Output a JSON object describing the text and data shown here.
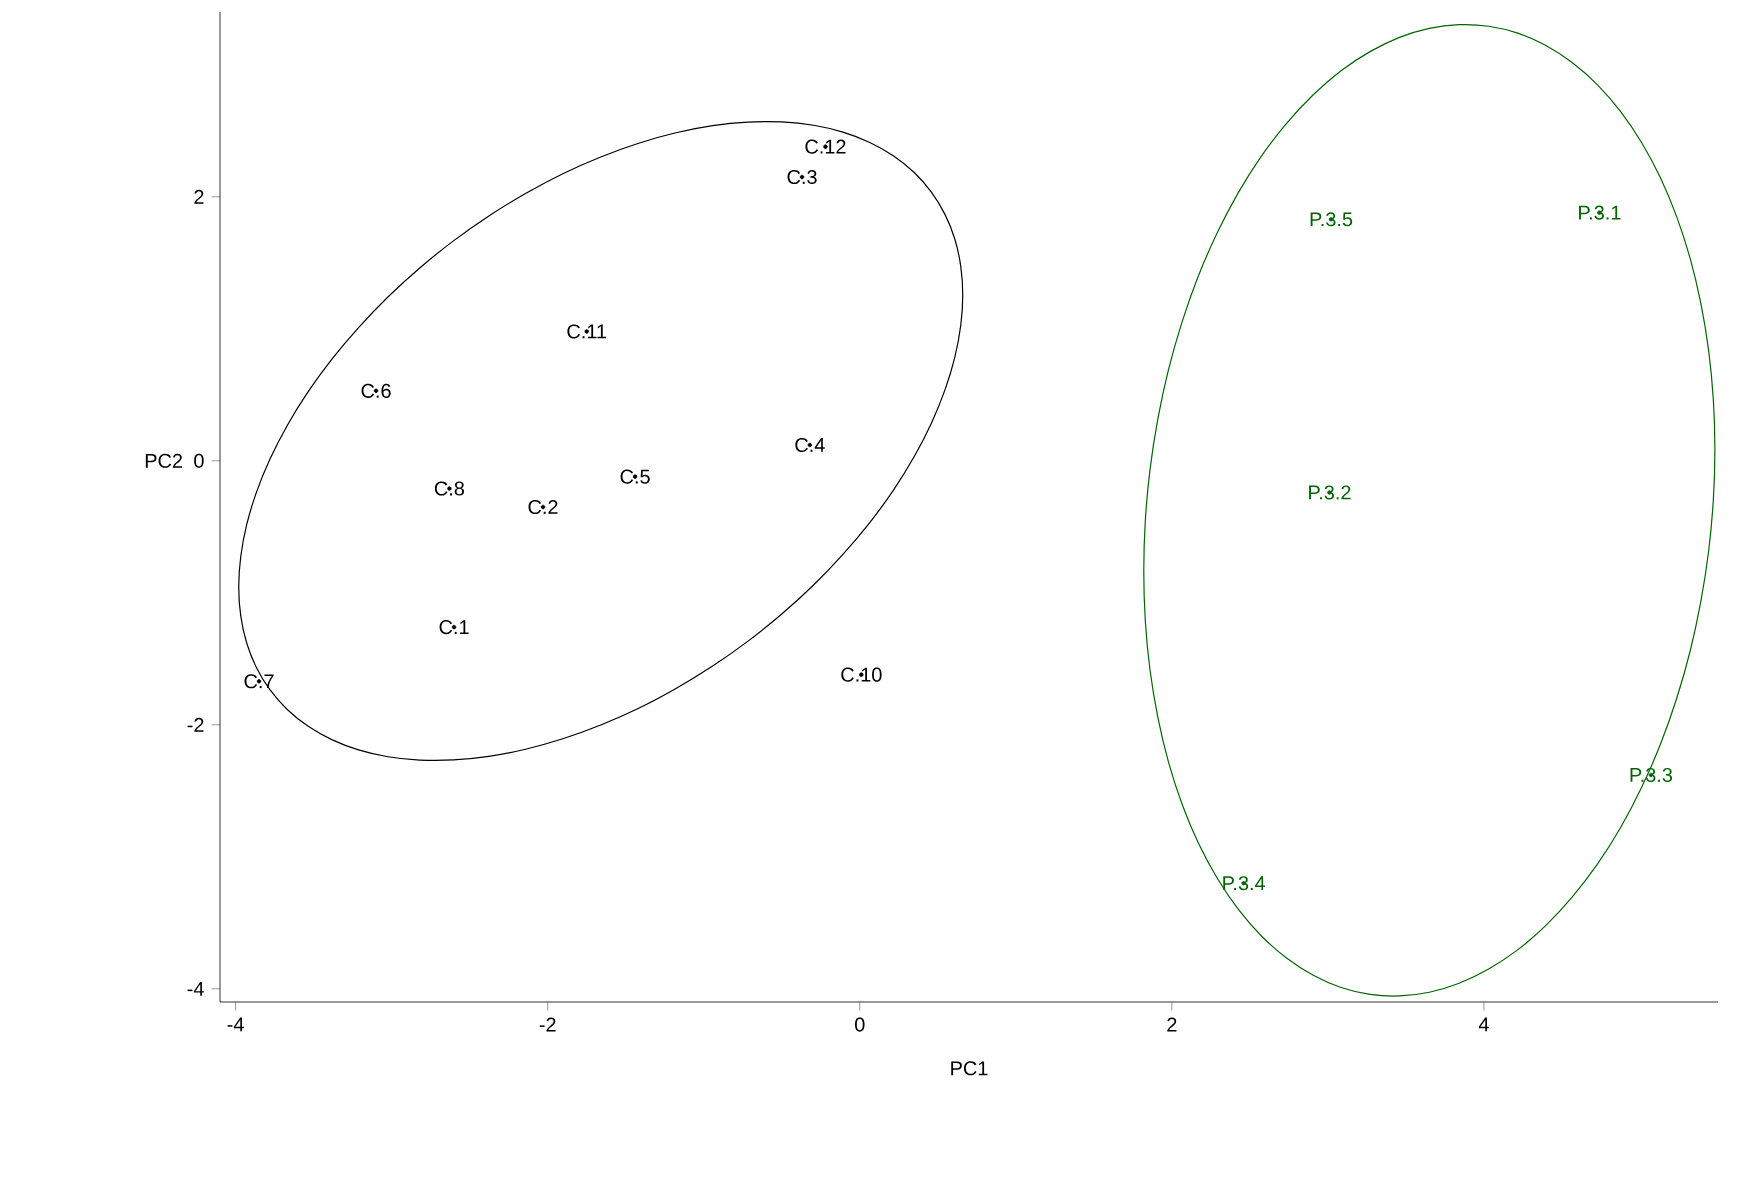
{
  "chart_data": {
    "type": "scatter",
    "xlabel": "PC1",
    "ylabel": "PC2",
    "grid": false,
    "xlim": [
      -4.1,
      5.5
    ],
    "ylim": [
      -4.1,
      3.4
    ],
    "xticks": [
      -4,
      -2,
      0,
      2,
      4
    ],
    "yticks": [
      -4,
      -2,
      0,
      2
    ],
    "series": [
      {
        "color": "#000000",
        "x": [
          -2.6,
          -2.03,
          -0.37,
          -0.32,
          -1.44,
          -3.1,
          -3.85,
          -2.63,
          0.01,
          -1.75,
          -0.22
        ],
        "values": [
          -1.26,
          -0.35,
          2.15,
          0.12,
          -0.12,
          0.53,
          -1.67,
          -0.21,
          -1.62,
          0.98,
          2.38
        ],
        "value_labels": [
          "C.1",
          "C.2",
          "C.3",
          "C.4",
          "C.5",
          "C.6",
          "C.7",
          "C.8",
          "C.10",
          "C.11",
          "C.12"
        ]
      },
      {
        "color": "#006400",
        "x": [
          4.74,
          3.01,
          5.07,
          2.46,
          3.02
        ],
        "values": [
          1.88,
          -0.24,
          -2.38,
          -3.2,
          1.83
        ],
        "value_labels": [
          "P.3.1",
          "P.3.2",
          "P.3.3",
          "P.3.4",
          "P.3.5"
        ]
      }
    ]
  }
}
